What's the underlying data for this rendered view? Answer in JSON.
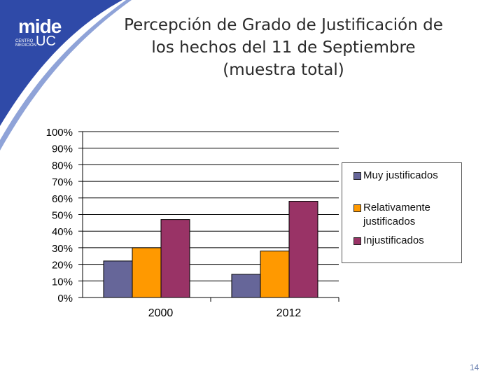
{
  "logo": {
    "mide": "mide",
    "sub": "CENTRO MEDICIÓN",
    "uc": "UC"
  },
  "title_lines": [
    "Percepción de Grado de Justificación de",
    "los hechos del 11 de Septiembre",
    "(muestra total)"
  ],
  "page_number": "14",
  "colors": {
    "swoosh": "#2f4aa8",
    "background": "#ffffff"
  },
  "chart_data": {
    "type": "bar",
    "categories": [
      "2000",
      "2012"
    ],
    "series": [
      {
        "name": "Muy justificados",
        "color": "#666699",
        "values": [
          22,
          14
        ]
      },
      {
        "name": "Relativamente justificados",
        "color": "#ff9900",
        "values": [
          30,
          28
        ]
      },
      {
        "name": "Injustificados",
        "color": "#993366",
        "values": [
          47,
          58
        ]
      }
    ],
    "ylim": [
      0,
      100
    ],
    "yticks": [
      "0%",
      "10%",
      "20%",
      "30%",
      "40%",
      "50%",
      "60%",
      "70%",
      "80%",
      "90%",
      "100%"
    ],
    "grid": true,
    "legend_position": "right"
  }
}
